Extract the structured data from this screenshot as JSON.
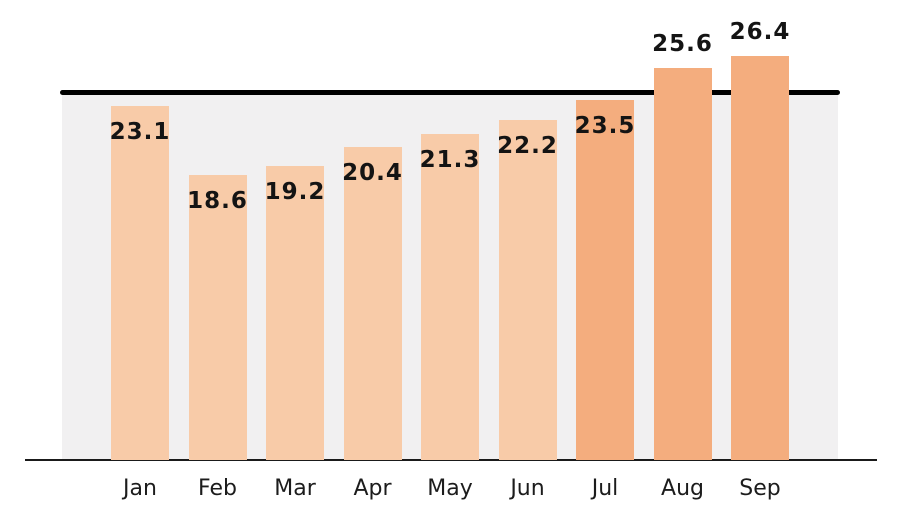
{
  "chart_data": {
    "type": "bar",
    "title": "",
    "xlabel": "",
    "ylabel": "",
    "categories": [
      "Jan",
      "Feb",
      "Mar",
      "Apr",
      "May",
      "Jun",
      "Jul",
      "Aug",
      "Sep"
    ],
    "values": [
      23.1,
      18.6,
      19.2,
      20.4,
      21.3,
      22.2,
      23.5,
      25.6,
      26.4
    ],
    "value_labels": [
      "23.1",
      "18.6",
      "19.2",
      "20.4",
      "21.3",
      "22.2",
      "23.5",
      "25.6",
      "26.4"
    ],
    "highlighted": [
      false,
      false,
      false,
      false,
      false,
      false,
      true,
      true,
      true
    ],
    "reference_line_value": 24,
    "ylim": [
      0,
      30
    ],
    "grid": "off",
    "legend": "none",
    "colors": {
      "bar_light": "#f8cba8",
      "bar_dark": "#f4ad7e",
      "plot_background": "#f1f0f1",
      "reference_line": "#000000",
      "axis_line": "#1a1a1a",
      "value_label_text": "#141414",
      "category_label_text": "#1c1c1c"
    }
  }
}
